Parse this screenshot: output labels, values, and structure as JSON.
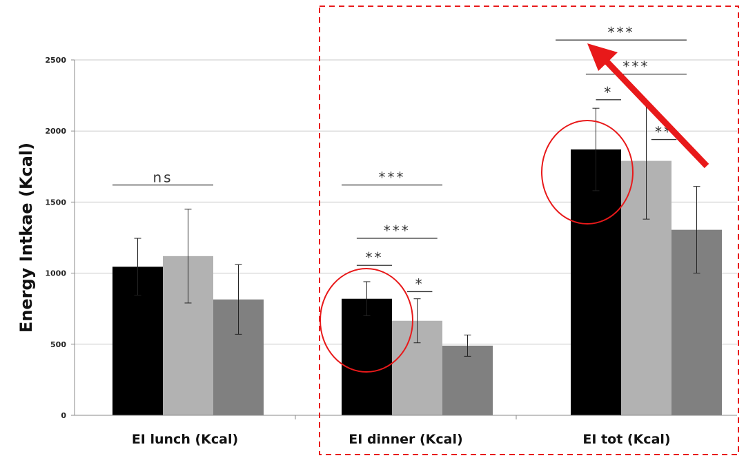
{
  "chart_data": {
    "type": "bar",
    "ylabel": "Energy Intkae (Kcal)",
    "xlabel": "",
    "ylim": [
      0,
      2500
    ],
    "yticks": [
      0,
      500,
      1000,
      1500,
      2000,
      2500
    ],
    "grid": true,
    "categories": [
      "EI lunch (Kcal)",
      "EI dinner (Kcal)",
      "EI tot (Kcal)"
    ],
    "series": [
      {
        "values": [
          1045,
          820,
          1870
        ],
        "errors": [
          200,
          120,
          290
        ],
        "color": "#000000"
      },
      {
        "values": [
          1120,
          665,
          1790
        ],
        "errors": [
          330,
          155,
          410
        ],
        "color": "#b2b2b2"
      },
      {
        "values": [
          815,
          490,
          1305
        ],
        "errors": [
          245,
          75,
          305
        ],
        "color": "#808080"
      }
    ],
    "significance": [
      {
        "group": 0,
        "label": "ns",
        "x_from": 0,
        "x_to": 2,
        "y": 1620
      },
      {
        "group": 1,
        "label": "***",
        "x_from": 0,
        "x_to": 2,
        "y": 1620
      },
      {
        "group": 1,
        "label": "***",
        "x_from": 0.3,
        "x_to": 1.9,
        "y": 1245
      },
      {
        "group": 1,
        "label": "**",
        "x_from": 0.3,
        "x_to": 1.0,
        "y": 1055
      },
      {
        "group": 1,
        "label": "*",
        "x_from": 1.3,
        "x_to": 1.8,
        "y": 870
      },
      {
        "group": 2,
        "label": "***",
        "x_from": -0.3,
        "x_to": 2.3,
        "y": 2640
      },
      {
        "group": 2,
        "label": "***",
        "x_from": 0.3,
        "x_to": 2.3,
        "y": 2400
      },
      {
        "group": 2,
        "label": "*",
        "x_from": 0.5,
        "x_to": 1.0,
        "y": 2220
      },
      {
        "group": 2,
        "label": "**",
        "x_from": 1.6,
        "x_to": 2.1,
        "y": 1940
      }
    ]
  },
  "annotations": {
    "highlight_color": "#e8191a",
    "dashed_box": "around EI dinner and EI tot",
    "circles": "around black bars of EI dinner and EI tot",
    "arrow": "red arrow pointing up-left toward top significance bar"
  }
}
